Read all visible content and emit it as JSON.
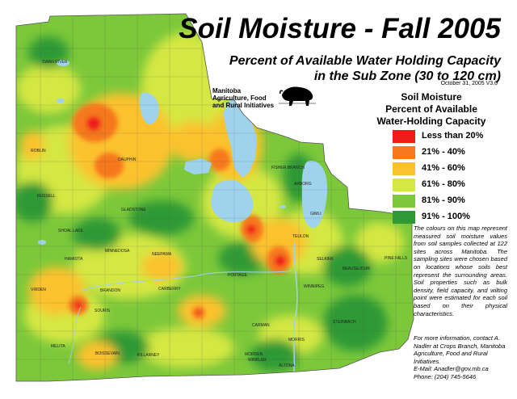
{
  "header": {
    "title": "Soil Moisture - Fall 2005",
    "subtitle_line1": "Percent of Available Water Holding Capacity",
    "subtitle_line2": "in the Sub Zone (30 to 120 cm)",
    "date": "October 31, 2005   V3.0",
    "ministry_line1": "Manitoba",
    "ministry_line2": "Agriculture, Food",
    "ministry_line3": "and Rural Initiatives"
  },
  "legend": {
    "title_line1": "Soil Moisture",
    "title_line2": "Percent of Available",
    "title_line3": "Water-Holding Capacity",
    "items": [
      {
        "label": "Less than 20%",
        "color": "#ee1b1b"
      },
      {
        "label": "21% - 40%",
        "color": "#f6781f"
      },
      {
        "label": "41% - 60%",
        "color": "#fbc22d"
      },
      {
        "label": "61% - 80%",
        "color": "#d4e742"
      },
      {
        "label": "81% - 90%",
        "color": "#7cc83a"
      },
      {
        "label": "91% - 100%",
        "color": "#2f9a35"
      }
    ]
  },
  "description": "The colours on this map represent measured soil moisture values from soil samples collected at 122 sites across Manitoba. The sampling sites were chosen based on locations whose soils best represent the surrounding areas. Soil properties such as bulk density, field capacity, and wilting point were estimated for each soil based on their physical characteristics.",
  "contact": {
    "line1": "For more information, contact A. Nadler at Crops Branch, Manitoba Agriculture, Food and Rural Initiatives.",
    "line2": "E-Mail: Anadler@gov.mb.ca",
    "line3": "Phone: (204) 745-5646"
  },
  "places": [
    {
      "name": "SWAN RIVER"
    },
    {
      "name": "ROBLIN"
    },
    {
      "name": "DAUPHIN"
    },
    {
      "name": "RUSSELL"
    },
    {
      "name": "GLADSTONE"
    },
    {
      "name": "SHOAL LAKE"
    },
    {
      "name": "MINNEDOSA"
    },
    {
      "name": "NEEPAWA"
    },
    {
      "name": "HAMIOTA"
    },
    {
      "name": "VIRDEN"
    },
    {
      "name": "BRANDON"
    },
    {
      "name": "CARBERRY"
    },
    {
      "name": "SOURIS"
    },
    {
      "name": "MELITA"
    },
    {
      "name": "BOISSEVAIN"
    },
    {
      "name": "KILLARNEY"
    },
    {
      "name": "PORTAGE"
    },
    {
      "name": "CARMAN"
    },
    {
      "name": "MORRIS"
    },
    {
      "name": "MORDEN"
    },
    {
      "name": "WINKLER"
    },
    {
      "name": "ALTONA"
    },
    {
      "name": "STEINBACH"
    },
    {
      "name": "WINNIPEG"
    },
    {
      "name": "SELKIRK"
    },
    {
      "name": "TEULON"
    },
    {
      "name": "GIMLI"
    },
    {
      "name": "ARBORG"
    },
    {
      "name": "FISHER BRANCH"
    },
    {
      "name": "BEAUSEJOUR"
    },
    {
      "name": "PINE FALLS"
    }
  ]
}
